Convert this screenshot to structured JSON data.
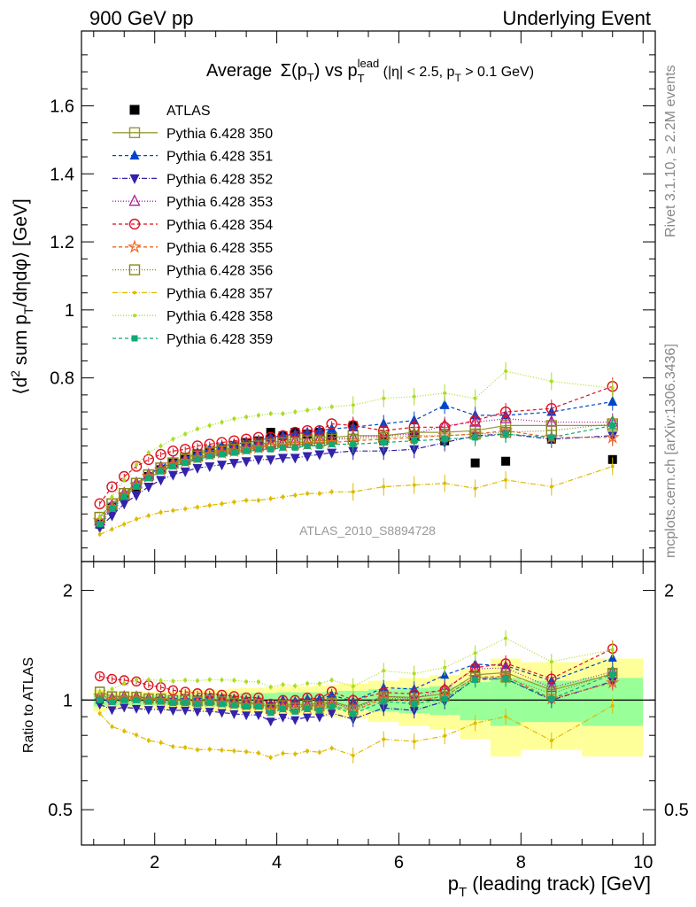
{
  "header": {
    "left": "900 GeV pp",
    "right": "Underlying Event"
  },
  "side_labels": {
    "rivet": "Rivet 3.1.10, ≥ 2.2M events",
    "mcplots": "mcplots.cern.ch [arXiv:1306.3436]"
  },
  "plot_title": {
    "prefix": "Average",
    "sigma": "Σ(p",
    "sigma_sub": "T",
    "vs": ") vs p",
    "lead_sub": "T",
    "lead_sup": "lead",
    "cuts1": " (|η| < 2.5, p",
    "cuts_sub": "T",
    "cuts2": " > 0.1 GeV)"
  },
  "analysis_id": "ATLAS_2010_S8894728",
  "colors": {
    "atlas": "#000000",
    "band_inner": "#99ff99",
    "band_outer": "#ffff99",
    "grid_ref": "#000000"
  },
  "chart_data": [
    {
      "type": "scatter",
      "panel": "main",
      "ylabel_parts": {
        "a": "⟨d",
        "sup2": "2",
        "b": " sum p",
        "subT": "T",
        "c": "/dηdφ⟩ [GeV]"
      },
      "ylim": [
        0.26,
        1.82
      ],
      "xlim": [
        0.8,
        10.2
      ],
      "yticks": [
        {
          "v": 0.8,
          "label": "0.8"
        },
        {
          "v": 1.0,
          "label": "1"
        },
        {
          "v": 1.2,
          "label": "1.2"
        },
        {
          "v": 1.4,
          "label": "1.4"
        },
        {
          "v": 1.6,
          "label": "1.6"
        }
      ],
      "legend_placement": "top-left",
      "x": [
        1.1,
        1.3,
        1.5,
        1.7,
        1.9,
        2.1,
        2.3,
        2.5,
        2.7,
        2.9,
        3.1,
        3.3,
        3.5,
        3.7,
        3.9,
        4.1,
        4.3,
        4.5,
        4.7,
        4.9,
        5.25,
        5.75,
        6.25,
        6.75,
        7.25,
        7.75,
        8.5,
        9.5
      ],
      "series": [
        {
          "name": "ATLAS",
          "marker": "square-filled",
          "color": "#000000",
          "dash": "",
          "values": [
            0.37,
            0.42,
            0.45,
            0.48,
            0.51,
            0.53,
            0.55,
            0.56,
            0.575,
            0.58,
            0.59,
            0.6,
            0.61,
            0.615,
            0.64,
            0.63,
            0.64,
            0.635,
            0.64,
            0.63,
            0.66,
            0.615,
            0.63,
            0.615,
            0.55,
            0.555,
            0.62,
            0.56
          ]
        },
        {
          "name": "Pythia 6.428 350",
          "marker": "square-open",
          "color": "#999933",
          "dash": "",
          "values": [
            0.39,
            0.43,
            0.46,
            0.49,
            0.515,
            0.535,
            0.55,
            0.565,
            0.575,
            0.585,
            0.59,
            0.595,
            0.6,
            0.605,
            0.61,
            0.615,
            0.62,
            0.62,
            0.625,
            0.625,
            0.63,
            0.63,
            0.64,
            0.64,
            0.645,
            0.66,
            0.66,
            0.66
          ]
        },
        {
          "name": "Pythia 6.428 351",
          "marker": "triangle-up-filled",
          "color": "#0044cc",
          "dash": "4,3",
          "values": [
            0.37,
            0.42,
            0.455,
            0.49,
            0.515,
            0.54,
            0.555,
            0.565,
            0.58,
            0.59,
            0.6,
            0.605,
            0.61,
            0.615,
            0.625,
            0.63,
            0.635,
            0.64,
            0.645,
            0.65,
            0.655,
            0.665,
            0.675,
            0.72,
            0.69,
            0.69,
            0.7,
            0.73
          ]
        },
        {
          "name": "Pythia 6.428 352",
          "marker": "triangle-down-filled",
          "color": "#3322aa",
          "dash": "6,2,1,2",
          "values": [
            0.36,
            0.395,
            0.43,
            0.455,
            0.48,
            0.5,
            0.515,
            0.525,
            0.535,
            0.54,
            0.545,
            0.55,
            0.555,
            0.56,
            0.56,
            0.565,
            0.565,
            0.57,
            0.575,
            0.58,
            0.585,
            0.585,
            0.59,
            0.61,
            0.63,
            0.635,
            0.62,
            0.63
          ]
        },
        {
          "name": "Pythia 6.428 353",
          "marker": "triangle-up-open",
          "color": "#aa2299",
          "dash": "1,2",
          "values": [
            0.38,
            0.425,
            0.46,
            0.49,
            0.515,
            0.535,
            0.55,
            0.56,
            0.57,
            0.58,
            0.585,
            0.59,
            0.595,
            0.6,
            0.605,
            0.61,
            0.615,
            0.615,
            0.62,
            0.62,
            0.625,
            0.63,
            0.635,
            0.66,
            0.67,
            0.68,
            0.67,
            0.67
          ]
        },
        {
          "name": "Pythia 6.428 354",
          "marker": "circle-open",
          "color": "#dd1122",
          "dash": "4,3",
          "values": [
            0.43,
            0.48,
            0.51,
            0.54,
            0.56,
            0.575,
            0.585,
            0.59,
            0.6,
            0.605,
            0.61,
            0.615,
            0.62,
            0.625,
            0.625,
            0.63,
            0.64,
            0.645,
            0.645,
            0.665,
            0.66,
            0.645,
            0.655,
            0.655,
            0.675,
            0.7,
            0.71,
            0.775
          ]
        },
        {
          "name": "Pythia 6.428 355",
          "marker": "star-open",
          "color": "#ee6622",
          "dash": "4,3",
          "values": [
            0.38,
            0.42,
            0.455,
            0.485,
            0.51,
            0.53,
            0.545,
            0.555,
            0.565,
            0.575,
            0.58,
            0.585,
            0.59,
            0.595,
            0.6,
            0.6,
            0.605,
            0.605,
            0.61,
            0.61,
            0.615,
            0.62,
            0.625,
            0.63,
            0.635,
            0.645,
            0.625,
            0.625
          ]
        },
        {
          "name": "Pythia 6.428 356",
          "marker": "square-open",
          "color": "#888822",
          "dash": "1,2",
          "values": [
            0.39,
            0.43,
            0.46,
            0.49,
            0.515,
            0.535,
            0.55,
            0.56,
            0.57,
            0.58,
            0.585,
            0.59,
            0.595,
            0.6,
            0.605,
            0.61,
            0.61,
            0.615,
            0.615,
            0.62,
            0.62,
            0.625,
            0.63,
            0.63,
            0.635,
            0.64,
            0.645,
            0.665
          ]
        },
        {
          "name": "Pythia 6.428 357",
          "marker": "dot",
          "color": "#ddbb00",
          "dash": "6,2,1,2",
          "values": [
            0.34,
            0.355,
            0.37,
            0.385,
            0.395,
            0.405,
            0.41,
            0.415,
            0.42,
            0.425,
            0.43,
            0.435,
            0.44,
            0.44,
            0.445,
            0.45,
            0.455,
            0.46,
            0.46,
            0.465,
            0.465,
            0.48,
            0.485,
            0.49,
            0.475,
            0.5,
            0.48,
            0.54
          ]
        },
        {
          "name": "Pythia 6.428 358",
          "marker": "dot",
          "color": "#aadd22",
          "dash": "1,2",
          "values": [
            0.39,
            0.45,
            0.5,
            0.545,
            0.58,
            0.6,
            0.62,
            0.635,
            0.65,
            0.66,
            0.67,
            0.68,
            0.685,
            0.69,
            0.695,
            0.695,
            0.7,
            0.705,
            0.71,
            0.715,
            0.72,
            0.74,
            0.745,
            0.755,
            0.74,
            0.82,
            0.79,
            0.77
          ]
        },
        {
          "name": "Pythia 6.428 359",
          "marker": "square-small-filled",
          "color": "#11aa77",
          "dash": "4,3",
          "values": [
            0.37,
            0.415,
            0.45,
            0.48,
            0.505,
            0.525,
            0.54,
            0.55,
            0.56,
            0.57,
            0.575,
            0.58,
            0.585,
            0.59,
            0.59,
            0.595,
            0.595,
            0.6,
            0.6,
            0.605,
            0.605,
            0.61,
            0.615,
            0.62,
            0.625,
            0.635,
            0.625,
            0.66
          ]
        }
      ]
    },
    {
      "type": "scatter",
      "panel": "ratio",
      "ylabel": "Ratio to ATLAS",
      "ylim": [
        0.4,
        2.4
      ],
      "yticks_left": [
        {
          "v": 0.5,
          "label": "0.5"
        },
        {
          "v": 1.0,
          "label": "1"
        },
        {
          "v": 2.0,
          "label": "2"
        }
      ],
      "yticks_right": [
        {
          "v": 0.5,
          "label": "0.5"
        },
        {
          "v": 2.0,
          "label": "2"
        }
      ],
      "xlabel_parts": {
        "a": "p",
        "sub": "T",
        "b": " (leading track) [GeV]"
      },
      "xticks": [
        {
          "v": 2,
          "label": "2"
        },
        {
          "v": 4,
          "label": "4"
        },
        {
          "v": 6,
          "label": "6"
        },
        {
          "v": 8,
          "label": "8"
        },
        {
          "v": 10,
          "label": "10"
        }
      ],
      "bands": {
        "edges": [
          1.0,
          1.2,
          1.4,
          1.6,
          1.8,
          2.0,
          2.2,
          2.4,
          2.6,
          2.8,
          3.0,
          3.2,
          3.4,
          3.6,
          3.8,
          4.0,
          4.2,
          4.4,
          4.6,
          4.8,
          5.0,
          5.5,
          6.0,
          6.5,
          7.0,
          7.5,
          8.0,
          9.0,
          10.0
        ],
        "inner": [
          0.04,
          0.035,
          0.03,
          0.03,
          0.03,
          0.03,
          0.03,
          0.035,
          0.035,
          0.04,
          0.04,
          0.04,
          0.045,
          0.045,
          0.045,
          0.05,
          0.05,
          0.05,
          0.05,
          0.055,
          0.06,
          0.07,
          0.08,
          0.09,
          0.12,
          0.15,
          0.13,
          0.15
        ],
        "outer": [
          0.07,
          0.06,
          0.055,
          0.055,
          0.055,
          0.06,
          0.06,
          0.065,
          0.065,
          0.07,
          0.07,
          0.075,
          0.08,
          0.08,
          0.085,
          0.09,
          0.09,
          0.09,
          0.095,
          0.1,
          0.11,
          0.13,
          0.15,
          0.17,
          0.22,
          0.3,
          0.27,
          0.3
        ]
      }
    }
  ]
}
